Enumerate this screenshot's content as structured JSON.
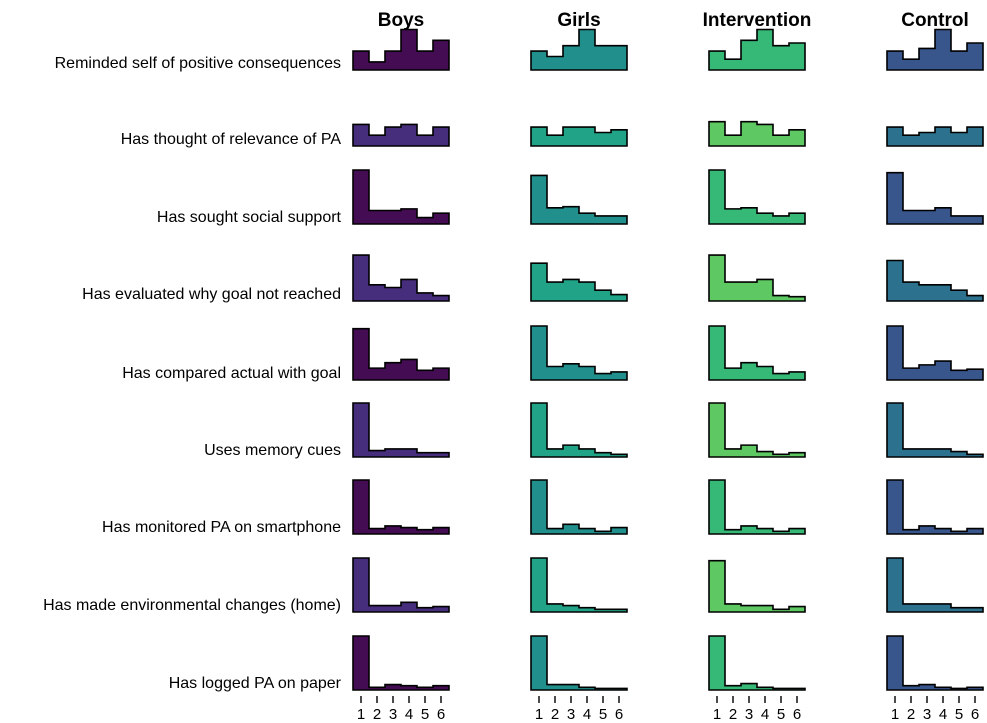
{
  "chart_data": {
    "type": "bar",
    "x": [
      1,
      2,
      3,
      4,
      5,
      6
    ],
    "x_tick_labels": [
      "1",
      "2",
      "3",
      "4",
      "5",
      "6"
    ],
    "columns": [
      {
        "title": "Boys",
        "colors": [
          "#440d53",
          "#472e7c",
          "#440d53",
          "#472e7c",
          "#440d53",
          "#472e7c",
          "#440d53",
          "#472e7c",
          "#440d53"
        ]
      },
      {
        "title": "Girls",
        "colors": [
          "#21908d",
          "#20a386",
          "#21908d",
          "#20a386",
          "#21908d",
          "#20a386",
          "#21908d",
          "#20a386",
          "#21908d"
        ]
      },
      {
        "title": "Intervention",
        "colors": [
          "#36b877",
          "#5ec962",
          "#36b877",
          "#5ec962",
          "#36b877",
          "#5ec962",
          "#36b877",
          "#5ec962",
          "#36b877"
        ]
      },
      {
        "title": "Control",
        "colors": [
          "#39568c",
          "#2c728e",
          "#39568c",
          "#2c728e",
          "#39568c",
          "#2c728e",
          "#39568c",
          "#2c728e",
          "#39568c"
        ]
      }
    ],
    "rows": [
      {
        "label": "Reminded self of positive consequences",
        "series": [
          {
            "name": "Boys",
            "values": [
              0.35,
              0.15,
              0.35,
              0.75,
              0.35,
              0.55
            ]
          },
          {
            "name": "Girls",
            "values": [
              0.35,
              0.25,
              0.45,
              0.75,
              0.45,
              0.45
            ]
          },
          {
            "name": "Intervention",
            "values": [
              0.35,
              0.2,
              0.55,
              0.75,
              0.45,
              0.5
            ]
          },
          {
            "name": "Control",
            "values": [
              0.35,
              0.2,
              0.4,
              0.75,
              0.35,
              0.5
            ]
          }
        ]
      },
      {
        "label": "Has thought of relevance of PA",
        "series": [
          {
            "name": "Boys",
            "values": [
              0.4,
              0.2,
              0.35,
              0.4,
              0.2,
              0.35
            ]
          },
          {
            "name": "Girls",
            "values": [
              0.35,
              0.2,
              0.35,
              0.35,
              0.25,
              0.3
            ]
          },
          {
            "name": "Intervention",
            "values": [
              0.45,
              0.2,
              0.45,
              0.4,
              0.2,
              0.3
            ]
          },
          {
            "name": "Control",
            "values": [
              0.35,
              0.2,
              0.25,
              0.35,
              0.25,
              0.35
            ]
          }
        ]
      },
      {
        "label": "Has sought social support",
        "series": [
          {
            "name": "Boys",
            "values": [
              1.0,
              0.25,
              0.25,
              0.28,
              0.12,
              0.2
            ]
          },
          {
            "name": "Girls",
            "values": [
              0.9,
              0.3,
              0.32,
              0.2,
              0.15,
              0.15
            ]
          },
          {
            "name": "Intervention",
            "values": [
              1.0,
              0.28,
              0.3,
              0.2,
              0.15,
              0.2
            ]
          },
          {
            "name": "Control",
            "values": [
              0.95,
              0.25,
              0.25,
              0.3,
              0.15,
              0.15
            ]
          }
        ]
      },
      {
        "label": "Has evaluated why goal not reached",
        "series": [
          {
            "name": "Boys",
            "values": [
              0.85,
              0.3,
              0.25,
              0.4,
              0.15,
              0.1
            ]
          },
          {
            "name": "Girls",
            "values": [
              0.7,
              0.35,
              0.4,
              0.35,
              0.2,
              0.12
            ]
          },
          {
            "name": "Intervention",
            "values": [
              0.85,
              0.35,
              0.35,
              0.4,
              0.1,
              0.08
            ]
          },
          {
            "name": "Control",
            "values": [
              0.75,
              0.35,
              0.3,
              0.3,
              0.2,
              0.1
            ]
          }
        ]
      },
      {
        "label": "Has compared actual with goal",
        "series": [
          {
            "name": "Boys",
            "values": [
              0.95,
              0.22,
              0.32,
              0.38,
              0.18,
              0.22
            ]
          },
          {
            "name": "Girls",
            "values": [
              1.0,
              0.25,
              0.3,
              0.25,
              0.12,
              0.15
            ]
          },
          {
            "name": "Intervention",
            "values": [
              1.0,
              0.22,
              0.32,
              0.25,
              0.12,
              0.15
            ]
          },
          {
            "name": "Control",
            "values": [
              1.0,
              0.22,
              0.28,
              0.35,
              0.18,
              0.2
            ]
          }
        ]
      },
      {
        "label": "Uses memory cues",
        "series": [
          {
            "name": "Boys",
            "values": [
              1.0,
              0.12,
              0.15,
              0.15,
              0.08,
              0.08
            ]
          },
          {
            "name": "Girls",
            "values": [
              1.0,
              0.15,
              0.22,
              0.15,
              0.08,
              0.05
            ]
          },
          {
            "name": "Intervention",
            "values": [
              1.0,
              0.15,
              0.22,
              0.1,
              0.05,
              0.08
            ]
          },
          {
            "name": "Control",
            "values": [
              1.0,
              0.15,
              0.15,
              0.15,
              0.1,
              0.05
            ]
          }
        ]
      },
      {
        "label": "Has monitored PA on smartphone",
        "series": [
          {
            "name": "Boys",
            "values": [
              1.0,
              0.1,
              0.15,
              0.12,
              0.08,
              0.12
            ]
          },
          {
            "name": "Girls",
            "values": [
              1.0,
              0.1,
              0.18,
              0.1,
              0.05,
              0.12
            ]
          },
          {
            "name": "Intervention",
            "values": [
              1.0,
              0.08,
              0.15,
              0.1,
              0.05,
              0.1
            ]
          },
          {
            "name": "Control",
            "values": [
              1.0,
              0.08,
              0.15,
              0.1,
              0.05,
              0.1
            ]
          }
        ]
      },
      {
        "label": "Has made environmental changes (home)",
        "series": [
          {
            "name": "Boys",
            "values": [
              1.0,
              0.12,
              0.12,
              0.18,
              0.08,
              0.1
            ]
          },
          {
            "name": "Girls",
            "values": [
              1.0,
              0.15,
              0.12,
              0.08,
              0.05,
              0.05
            ]
          },
          {
            "name": "Intervention",
            "values": [
              0.95,
              0.15,
              0.12,
              0.12,
              0.05,
              0.1
            ]
          },
          {
            "name": "Control",
            "values": [
              1.0,
              0.15,
              0.15,
              0.15,
              0.08,
              0.08
            ]
          }
        ]
      },
      {
        "label": "Has logged PA on paper",
        "series": [
          {
            "name": "Boys",
            "values": [
              1.0,
              0.05,
              0.1,
              0.08,
              0.05,
              0.08
            ]
          },
          {
            "name": "Girls",
            "values": [
              1.0,
              0.1,
              0.1,
              0.05,
              0.03,
              0.03
            ]
          },
          {
            "name": "Intervention",
            "values": [
              1.0,
              0.08,
              0.12,
              0.05,
              0.03,
              0.03
            ]
          },
          {
            "name": "Control",
            "values": [
              1.0,
              0.08,
              0.1,
              0.05,
              0.03,
              0.05
            ]
          }
        ]
      }
    ],
    "grid": false,
    "legend": "none",
    "ylim": [
      0,
      1
    ]
  }
}
